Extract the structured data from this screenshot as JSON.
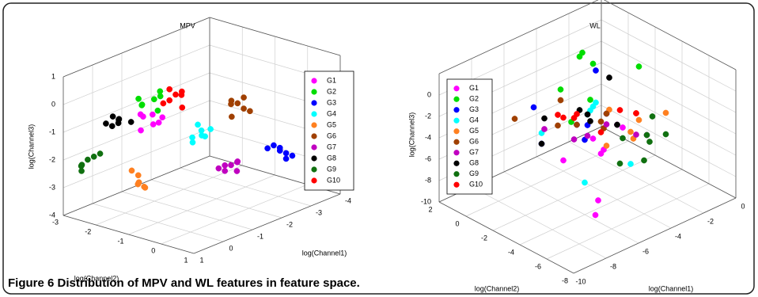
{
  "chart_data": [
    {
      "type": "scatter3d",
      "title": "MPV",
      "xlabel": "log(Channel1)",
      "ylabel": "log(Channel2)",
      "zlabel": "log(Channel3)",
      "xlim": [
        -4,
        1
      ],
      "xticks": [
        -4,
        -3,
        -2,
        -1,
        0,
        1
      ],
      "ylim": [
        -3,
        1
      ],
      "yticks": [
        -3,
        -2,
        -1,
        0,
        1
      ],
      "zlim": [
        -4,
        1
      ],
      "zticks": [
        -4,
        -3,
        -2,
        -1,
        0,
        1
      ],
      "grid": true,
      "series": [
        {
          "name": "G1",
          "color": "#ff00ff",
          "x": [
            -0.6,
            -0.4,
            -0.3,
            -0.7,
            -0.5,
            -0.2,
            -0.6
          ],
          "y": [
            -1.7,
            -1.5,
            -1.8,
            -1.6,
            -1.9,
            -1.7,
            -1.4
          ],
          "z": [
            -0.6,
            -0.8,
            -0.5,
            -0.9,
            -0.7,
            -1.0,
            -0.6
          ]
        },
        {
          "name": "G2",
          "color": "#00dd00",
          "x": [
            -1.1,
            -0.9,
            -1.2,
            -0.8,
            -1.0,
            -1.3,
            -0.9
          ],
          "y": [
            -2.1,
            -2.3,
            -2.0,
            -2.2,
            -1.9,
            -2.1,
            -2.4
          ],
          "z": [
            -0.4,
            -0.6,
            -0.3,
            -0.5,
            -0.7,
            -0.2,
            -0.4
          ]
        },
        {
          "name": "G3",
          "color": "#0000ff",
          "x": [
            -3.5,
            -3.6,
            -3.4,
            -3.7,
            -3.5,
            -3.3,
            -3.6
          ],
          "y": [
            -0.4,
            -0.3,
            -0.5,
            -0.2,
            -0.4,
            -0.6,
            -0.3
          ],
          "z": [
            -2.6,
            -2.8,
            -2.5,
            -2.9,
            -2.7,
            -2.6,
            -3.0
          ]
        },
        {
          "name": "G4",
          "color": "#00ffff",
          "x": [
            -1.6,
            -1.4,
            -1.5,
            -1.7,
            -1.3,
            -1.5,
            -1.8
          ],
          "y": [
            -1.1,
            -1.2,
            -1.0,
            -1.3,
            -1.1,
            -0.9,
            -1.0
          ],
          "z": [
            -1.4,
            -1.6,
            -1.5,
            -1.3,
            -1.7,
            -1.5,
            -1.4
          ]
        },
        {
          "name": "G5",
          "color": "#ff8020",
          "x": [
            0.0,
            0.1,
            -0.1,
            0.2,
            0.0,
            -0.2,
            0.1
          ],
          "y": [
            -1.6,
            -1.5,
            -1.7,
            -1.4,
            -1.8,
            -1.6,
            -1.3
          ],
          "z": [
            -2.5,
            -2.7,
            -2.9,
            -2.6,
            -2.4,
            -3.0,
            -2.8
          ]
        },
        {
          "name": "G6",
          "color": "#a04000",
          "x": [
            -2.5,
            -2.6,
            -2.4,
            -2.7,
            -2.5,
            -2.3,
            -2.6
          ],
          "y": [
            -0.8,
            -0.7,
            -0.9,
            -0.6,
            -1.0,
            -0.8,
            -0.7
          ],
          "z": [
            -0.7,
            -0.9,
            -0.6,
            -1.0,
            -0.8,
            -1.1,
            -0.5
          ]
        },
        {
          "name": "G7",
          "color": "#c000c0",
          "x": [
            -2.5,
            -2.4,
            -2.6,
            -2.3,
            -2.7,
            -2.5,
            -2.4
          ],
          "y": [
            -1.0,
            -1.1,
            -0.9,
            -1.2,
            -1.0,
            -0.8,
            -1.1
          ],
          "z": [
            -3.0,
            -3.2,
            -2.9,
            -3.1,
            -3.3,
            -2.8,
            -3.0
          ]
        },
        {
          "name": "G8",
          "color": "#000000",
          "x": [
            0.0,
            -0.1,
            0.1,
            0.0,
            -0.2,
            0.2,
            0.1
          ],
          "y": [
            -2.2,
            -2.3,
            -2.1,
            -2.4,
            -2.0,
            -2.2,
            -2.5
          ],
          "z": [
            -0.7,
            -0.9,
            -0.6,
            -1.0,
            -0.8,
            -0.5,
            -0.9
          ]
        },
        {
          "name": "G9",
          "color": "#107010",
          "x": [
            0.5,
            0.6,
            0.4,
            0.5,
            0.7,
            0.3,
            0.6
          ],
          "y": [
            -2.7,
            -2.8,
            -2.6,
            -2.9,
            -2.7,
            -2.5,
            -2.8
          ],
          "z": [
            -2.1,
            -2.3,
            -2.0,
            -2.4,
            -2.2,
            -1.9,
            -2.5
          ]
        },
        {
          "name": "G10",
          "color": "#ff0000",
          "x": [
            -1.5,
            -1.4,
            -1.6,
            -1.3,
            -1.7,
            -1.5,
            -1.4
          ],
          "y": [
            -1.8,
            -1.9,
            -1.7,
            -2.0,
            -1.8,
            -1.6,
            -1.9
          ],
          "z": [
            -0.3,
            -0.5,
            -0.2,
            -0.6,
            -0.4,
            -0.7,
            -0.1
          ]
        }
      ]
    },
    {
      "type": "scatter3d",
      "title": "WL",
      "xlabel": "log(Channel1)",
      "ylabel": "log(Channel2)",
      "zlabel": "log(Channel3)",
      "xlim": [
        -10,
        0
      ],
      "xticks": [
        -10,
        -8,
        -6,
        -4,
        -2,
        0
      ],
      "ylim": [
        -8,
        2
      ],
      "yticks": [
        -8,
        -6,
        -4,
        -2,
        0,
        2
      ],
      "zlim": [
        -10,
        2
      ],
      "zticks": [
        -10,
        -8,
        -6,
        -4,
        -2,
        0
      ],
      "grid": true,
      "series": [
        {
          "name": "G1",
          "color": "#ff00ff",
          "x": [
            -6,
            -4,
            -3,
            -5,
            -2,
            -7,
            -4
          ],
          "y": [
            -5,
            -3,
            -1,
            -4,
            -2,
            -6,
            0
          ],
          "z": [
            -8,
            -6,
            -7,
            -5,
            -6,
            -8,
            -9
          ]
        },
        {
          "name": "G2",
          "color": "#00dd00",
          "x": [
            -5,
            -3,
            -4,
            -2,
            -6,
            -3,
            -1
          ],
          "y": [
            -1,
            0,
            -2,
            1,
            -3,
            -1,
            -2
          ],
          "z": [
            -1,
            0,
            -2,
            -1,
            -2,
            0,
            -1
          ]
        },
        {
          "name": "G3",
          "color": "#0000ff",
          "x": [
            -7,
            -5,
            -4,
            -3,
            -6,
            -2,
            -5
          ],
          "y": [
            -2,
            -3,
            -1,
            -2,
            -4,
            0,
            1
          ],
          "z": [
            -4,
            -3,
            -5,
            -4,
            -3,
            -2,
            -4
          ]
        },
        {
          "name": "G4",
          "color": "#00ffff",
          "x": [
            -6,
            -4,
            -3,
            -5,
            -2,
            -4,
            -7
          ],
          "y": [
            -4,
            -2,
            -1,
            -3,
            0,
            -5,
            -2
          ],
          "z": [
            -7,
            -3,
            -4,
            -2,
            -5,
            -6,
            -3
          ]
        },
        {
          "name": "G5",
          "color": "#ff8020",
          "x": [
            -3,
            -2,
            -1,
            -4,
            -2,
            -3,
            -1
          ],
          "y": [
            -4,
            -3,
            -2,
            -5,
            -1,
            -2,
            -4
          ],
          "z": [
            -5,
            -4,
            -6,
            -3,
            -5,
            -7,
            -4
          ]
        },
        {
          "name": "G6",
          "color": "#a04000",
          "x": [
            -6,
            -5,
            -4,
            -7,
            -3,
            -5,
            -4
          ],
          "y": [
            -2,
            -1,
            -3,
            0,
            -2,
            -4,
            -1
          ],
          "z": [
            -3,
            -2,
            -4,
            -3,
            -4,
            -2,
            -5
          ]
        },
        {
          "name": "G7",
          "color": "#c000c0",
          "x": [
            -5,
            -3,
            -4,
            -6,
            -2,
            -3,
            -5
          ],
          "y": [
            -3,
            -2,
            -4,
            -1,
            -3,
            -5,
            -2
          ],
          "z": [
            -4,
            -5,
            -3,
            -4,
            -6,
            -4,
            -5
          ]
        },
        {
          "name": "G8",
          "color": "#000000",
          "x": [
            -6,
            -4,
            -5,
            -3,
            -7,
            -4,
            -2
          ],
          "y": [
            -1,
            -2,
            -3,
            0,
            -2,
            -4,
            -1
          ],
          "z": [
            -3,
            -4,
            -2,
            -5,
            -4,
            -3,
            -2
          ]
        },
        {
          "name": "G9",
          "color": "#107010",
          "x": [
            -2,
            -1,
            -3,
            -2,
            -4,
            -1,
            -3
          ],
          "y": [
            -4,
            -3,
            -5,
            -2,
            -6,
            -4,
            -3
          ],
          "z": [
            -6,
            -5,
            -4,
            -7,
            -5,
            -6,
            -8
          ]
        },
        {
          "name": "G10",
          "color": "#ff0000",
          "x": [
            -5,
            -4,
            -3,
            -6,
            -4,
            -2,
            -5
          ],
          "y": [
            -2,
            -1,
            -3,
            -2,
            0,
            -3,
            -4
          ],
          "z": [
            -3,
            -4,
            -3,
            -2,
            -5,
            -4,
            -3
          ]
        }
      ]
    }
  ],
  "figure_label": "Figure 6",
  "caption": "Distribution of MPV and WL features in feature space."
}
